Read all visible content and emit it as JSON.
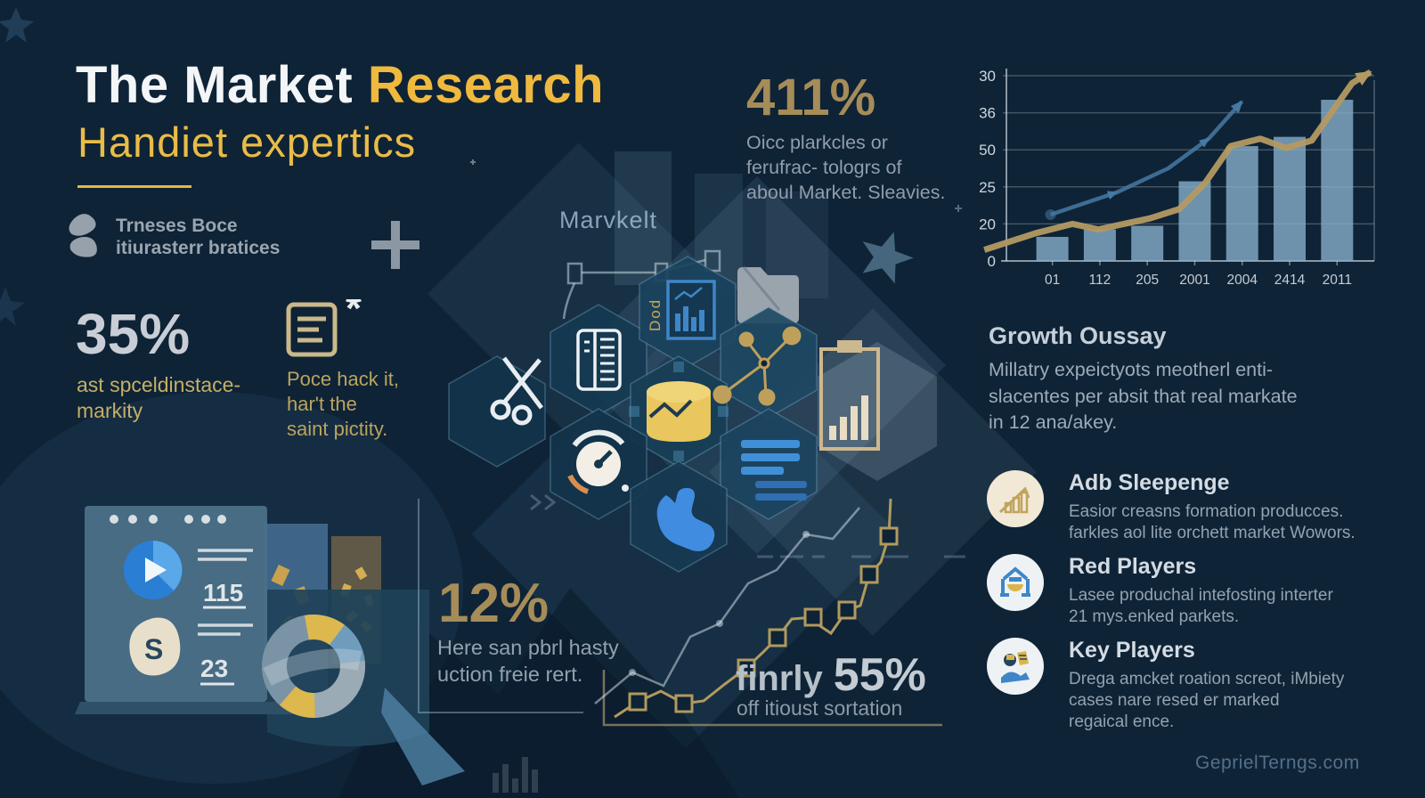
{
  "colors": {
    "background": "#0e2336",
    "accent_yellow": "#efb93e",
    "gold": "#a58c58",
    "silver": "#c9cdd5",
    "text_gray": "#93a2af",
    "bar_blue": "#87aec9",
    "line_gold": "#b49a62",
    "line_blue": "#4679a3",
    "hex_fill": "#153850",
    "icon_blue": "#3f86c8",
    "icon_yellow": "#e9c75e"
  },
  "header": {
    "title_part1": "The Market ",
    "title_part2": "Research",
    "subtitle": "Handiet expertics"
  },
  "brand": {
    "name": "Trneses Boce\nitiurasterr bratices"
  },
  "stats": {
    "s35": {
      "value": "35%",
      "caption": "ast spceldinstace-\nmarkity"
    },
    "doc_note": {
      "caption": "Poce hack it,\nhar't the\nsaint pictity."
    },
    "s411": {
      "value": "411%",
      "caption": "Oicc plarkcles or\nferufrac- tologrs of\naboul Market. Sleavies."
    },
    "s12": {
      "value": "12%",
      "caption": "Here san pbrl hasty\nuction freie rert."
    },
    "s55": {
      "prefix": "finrly",
      "value": "55%",
      "caption": "off itioust sortation"
    }
  },
  "center_label": "Marvkelt",
  "doc_icon_label": "Dod",
  "growth": {
    "heading": "Growth Oussay",
    "body": "Millatry expeictyots  meotherl enti-\nslacentes per absit that real markate\nin 12 ana/akey."
  },
  "players": [
    {
      "title": "Adb Sleepenge",
      "desc": "Easior creasns formation producces.\nfarkles aol lite orchett market Wowors.",
      "icon": "growth-bars-icon"
    },
    {
      "title": "Red Players",
      "desc": "Lasee produchal intefosting interter\n21 mys.enked parkets.",
      "icon": "market-stand-icon"
    },
    {
      "title": "Key Players",
      "desc": "Drega amcket roation screot, iMbiety\ncases nare resed er marked\nregaical ence.",
      "icon": "person-icon"
    }
  ],
  "window_card": {
    "num1": "115",
    "num2": "23",
    "letter": "S"
  },
  "watermark": "GeprielTerngs.com",
  "chart_data": {
    "type": "bar",
    "title": "",
    "xlabel": "",
    "ylabel": "",
    "categories": [
      "01",
      "112",
      "205",
      "2001",
      "2004",
      "2414",
      "2011"
    ],
    "values": [
      13,
      17,
      19,
      43,
      62,
      67,
      87
    ],
    "ytick_labels_top_to_bottom": [
      "30",
      "36",
      "50",
      "25",
      "20",
      "0"
    ],
    "ylim": [
      0,
      100
    ],
    "grid": true,
    "bar_color": "#87aec9",
    "series": [
      {
        "name": "gold-trend",
        "type": "line",
        "color": "#b49a62",
        "points": [
          [
            -6,
            6
          ],
          [
            8,
            15
          ],
          [
            18,
            20
          ],
          [
            25,
            17
          ],
          [
            39,
            23
          ],
          [
            47,
            28
          ],
          [
            54,
            42
          ],
          [
            61,
            62
          ],
          [
            69,
            66
          ],
          [
            76,
            61
          ],
          [
            83,
            65
          ],
          [
            94,
            96
          ],
          [
            99,
            102
          ]
        ]
      },
      {
        "name": "blue-trend",
        "type": "line",
        "color": "#4679a3",
        "points": [
          [
            12,
            25
          ],
          [
            30,
            37
          ],
          [
            44,
            50
          ],
          [
            55,
            66
          ],
          [
            64,
            86
          ]
        ]
      }
    ]
  }
}
